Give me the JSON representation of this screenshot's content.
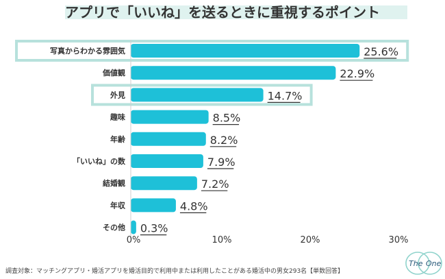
{
  "title": "アプリで「いいね」を送るときに重視するポイント",
  "footnote": "調査対象：マッチングアプリ・婚活アプリを婚活目的で利用中または利用したことがある婚活中の男女293名【単数回答】",
  "logo": {
    "text_left": "The",
    "text_right": "One"
  },
  "colors": {
    "bar": "#1ec0d8",
    "highlight_border": "#b7e1dc",
    "title_band": "#dff2ef"
  },
  "chart_data": {
    "type": "bar",
    "orientation": "horizontal",
    "categories": [
      "写真からわかる雰囲気",
      "価値観",
      "外見",
      "趣味",
      "年齢",
      "「いいね」の数",
      "結婚観",
      "年収",
      "その他"
    ],
    "values": [
      25.6,
      22.9,
      14.7,
      8.5,
      8.2,
      7.9,
      7.2,
      4.8,
      0.3
    ],
    "value_labels": [
      "25.6%",
      "22.9%",
      "14.7%",
      "8.5%",
      "8.2%",
      "7.9%",
      "7.2%",
      "4.8%",
      "0.3%"
    ],
    "highlighted": [
      "写真からわかる雰囲気",
      "外見"
    ],
    "xlim": [
      0,
      30
    ],
    "xticks": [
      "0%",
      "10%",
      "20%",
      "30%"
    ],
    "grid": false
  }
}
